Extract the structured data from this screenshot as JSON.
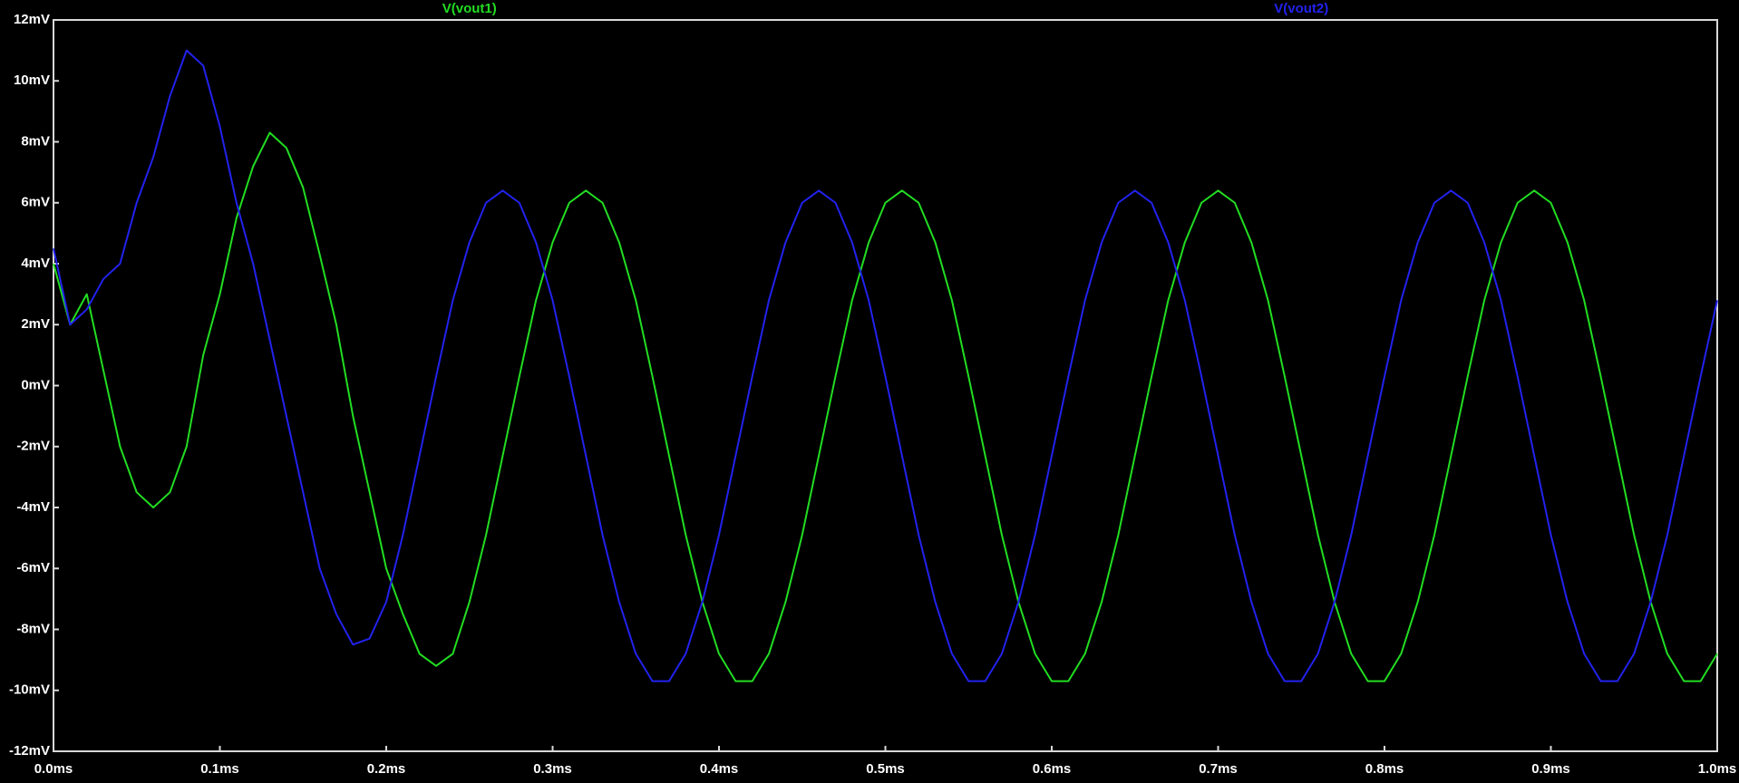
{
  "chart_data": {
    "type": "line",
    "x": [
      0,
      0.01,
      0.02,
      0.03,
      0.04,
      0.05,
      0.06,
      0.07,
      0.08,
      0.09,
      0.1,
      0.11,
      0.12,
      0.13,
      0.14,
      0.15,
      0.16,
      0.17,
      0.18,
      0.19,
      0.2,
      0.21,
      0.22,
      0.23,
      0.24,
      0.25,
      0.26,
      0.27,
      0.28,
      0.29,
      0.3,
      0.31,
      0.32,
      0.33,
      0.34,
      0.35,
      0.36,
      0.37,
      0.38,
      0.39,
      0.4,
      0.41,
      0.42,
      0.43,
      0.44,
      0.45,
      0.46,
      0.47,
      0.48,
      0.49,
      0.5,
      0.51,
      0.52,
      0.53,
      0.54,
      0.55,
      0.56,
      0.57,
      0.58,
      0.59,
      0.6,
      0.61,
      0.62,
      0.63,
      0.64,
      0.65,
      0.66,
      0.67,
      0.68,
      0.69,
      0.7,
      0.71,
      0.72,
      0.73,
      0.74,
      0.75,
      0.76,
      0.77,
      0.78,
      0.79,
      0.8,
      0.81,
      0.82,
      0.83,
      0.84,
      0.85,
      0.86,
      0.87,
      0.88,
      0.89,
      0.9,
      0.91,
      0.92,
      0.93,
      0.94,
      0.95,
      0.96,
      0.97,
      0.98,
      0.99,
      1.0
    ],
    "series": [
      {
        "name": "V(vout1)",
        "color": "#22dd22",
        "values": [
          4,
          2,
          3,
          0.5,
          -2,
          -3.5,
          -4,
          -3.5,
          -2,
          1,
          3,
          5.5,
          7.2,
          8.3,
          7.8,
          6.5,
          4.3,
          2,
          -1,
          -3.5,
          -6,
          -7.5,
          -8.8,
          -9.2,
          -8.8,
          -7.1,
          -4.9,
          -2.3,
          0.3,
          2.8,
          4.7,
          6.0,
          6.4,
          6.0,
          4.7,
          2.8,
          0.3,
          -2.3,
          -4.9,
          -7.1,
          -8.8,
          -9.7,
          -9.7,
          -8.8,
          -7.1,
          -4.9,
          -2.3,
          0.3,
          2.8,
          4.7,
          6.0,
          6.4,
          6.0,
          4.7,
          2.8,
          0.3,
          -2.3,
          -4.9,
          -7.1,
          -8.8,
          -9.7,
          -9.7,
          -8.8,
          -7.1,
          -4.9,
          -2.3,
          0.3,
          2.8,
          4.7,
          6.0,
          6.4,
          6.0,
          4.7,
          2.8,
          0.3,
          -2.3,
          -4.9,
          -7.1,
          -8.8,
          -9.7,
          -9.7,
          -8.8,
          -7.1,
          -4.9,
          -2.3,
          0.3,
          2.8,
          4.7,
          6.0,
          6.4,
          6.0,
          4.7,
          2.8,
          0.3,
          -2.3,
          -4.9,
          -7.1,
          -8.8,
          -9.7,
          -9.7,
          -8.8
        ]
      },
      {
        "name": "V(vout2)",
        "color": "#2222ee",
        "values": [
          4.5,
          2,
          2.5,
          3.5,
          4,
          6,
          7.5,
          9.5,
          11,
          10.5,
          8.5,
          6,
          4,
          1.5,
          -1,
          -3.5,
          -6,
          -7.5,
          -8.5,
          -8.3,
          -7.1,
          -4.9,
          -2.3,
          0.3,
          2.8,
          4.7,
          6.0,
          6.4,
          6.0,
          4.7,
          2.8,
          0.3,
          -2.3,
          -4.9,
          -7.1,
          -8.8,
          -9.7,
          -9.7,
          -8.8,
          -7.1,
          -4.9,
          -2.3,
          0.3,
          2.8,
          4.7,
          6.0,
          6.4,
          6.0,
          4.7,
          2.8,
          0.3,
          -2.3,
          -4.9,
          -7.1,
          -8.8,
          -9.7,
          -9.7,
          -8.8,
          -7.1,
          -4.9,
          -2.3,
          0.3,
          2.8,
          4.7,
          6.0,
          6.4,
          6.0,
          4.7,
          2.8,
          0.3,
          -2.3,
          -4.9,
          -7.1,
          -8.8,
          -9.7,
          -9.7,
          -8.8,
          -7.1,
          -4.9,
          -2.3,
          0.3,
          2.8,
          4.7,
          6.0,
          6.4,
          6.0,
          4.7,
          2.8,
          0.3,
          -2.3,
          -4.9,
          -7.1,
          -8.8,
          -9.7,
          -9.7,
          -8.8,
          -7.1,
          -4.9,
          -2.3,
          0.3,
          2.8
        ]
      }
    ],
    "xlim": [
      0,
      1.0
    ],
    "xticks": [
      {
        "value": 0,
        "label": "0.0ms"
      },
      {
        "value": 0.1,
        "label": "0.1ms"
      },
      {
        "value": 0.2,
        "label": "0.2ms"
      },
      {
        "value": 0.3,
        "label": "0.3ms"
      },
      {
        "value": 0.4,
        "label": "0.4ms"
      },
      {
        "value": 0.5,
        "label": "0.5ms"
      },
      {
        "value": 0.6,
        "label": "0.6ms"
      },
      {
        "value": 0.7,
        "label": "0.7ms"
      },
      {
        "value": 0.8,
        "label": "0.8ms"
      },
      {
        "value": 0.9,
        "label": "0.9ms"
      },
      {
        "value": 1.0,
        "label": "1.0ms"
      }
    ],
    "ylim": [
      -12,
      12
    ],
    "yticks": [
      {
        "value": -12,
        "label": "-12mV"
      },
      {
        "value": -10,
        "label": "-10mV"
      },
      {
        "value": -8,
        "label": "-8mV"
      },
      {
        "value": -6,
        "label": "-6mV"
      },
      {
        "value": -4,
        "label": "-4mV"
      },
      {
        "value": -2,
        "label": "-2mV"
      },
      {
        "value": 0,
        "label": "0mV"
      },
      {
        "value": 2,
        "label": "2mV"
      },
      {
        "value": 4,
        "label": "4mV"
      },
      {
        "value": 6,
        "label": "6mV"
      },
      {
        "value": 8,
        "label": "8mV"
      },
      {
        "value": 10,
        "label": "10mV"
      },
      {
        "value": 12,
        "label": "12mV"
      }
    ],
    "grid": false
  }
}
